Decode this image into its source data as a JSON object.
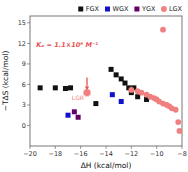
{
  "chart_data": {
    "type": "scatter",
    "x_label": "ΔH (kcal/mol)",
    "y_label": "−TΔS (kcal/mol)",
    "xlim": [
      -20,
      -8
    ],
    "ylim": [
      -3,
      16
    ],
    "xticks": [
      -20,
      -18,
      -16,
      -14,
      -12,
      -10,
      -8
    ],
    "yticks": [
      0,
      3,
      6,
      9,
      12,
      15
    ],
    "grid": false,
    "legend": "upper right",
    "series": [
      {
        "name": "FGX",
        "color": "#111111",
        "marker": "square",
        "x": [
          -19.2,
          -18.0,
          -17.2,
          -16.8,
          -14.8,
          -13.6,
          -13.2,
          -12.8,
          -12.5,
          -12.2,
          -12.0,
          -11.8,
          -11.5,
          -10.8
        ],
        "values": [
          5.5,
          5.5,
          5.4,
          5.5,
          3.2,
          8.2,
          7.4,
          6.8,
          6.2,
          5.5,
          4.8,
          5.5,
          4.2,
          3.8
        ]
      },
      {
        "name": "WGX",
        "color": "#1111cc",
        "marker": "square",
        "x": [
          -17.0,
          -13.5,
          -12.8
        ],
        "values": [
          1.5,
          4.5,
          3.5
        ]
      },
      {
        "name": "YGX",
        "color": "#660066",
        "marker": "square",
        "x": [
          -16.5,
          -16.2
        ],
        "values": [
          2.0,
          1.2
        ]
      },
      {
        "name": "LGX",
        "color": "#F08080",
        "marker": "circle",
        "x": [
          -12.0,
          -11.5,
          -11.2,
          -10.8,
          -10.5,
          -10.2,
          -10.0,
          -9.8,
          -9.5,
          -9.2,
          -9.0,
          -8.8,
          -8.5,
          -8.3,
          -8.2,
          -9.5
        ],
        "values": [
          5.2,
          5.0,
          4.8,
          4.5,
          4.2,
          4.0,
          3.8,
          3.5,
          3.2,
          3.0,
          2.8,
          2.5,
          2.3,
          0.5,
          -0.8,
          14.0
        ]
      }
    ],
    "highlight": {
      "name": "LGR",
      "x": -15.5,
      "y": 4.8,
      "color": "#F08080"
    },
    "annotation": {
      "text": "Kₐ = 1.1×10⁹ M⁻¹",
      "x": -19.5,
      "y": 11.5,
      "color": "#E85050"
    },
    "arrow": {
      "x": -15.5,
      "y_start": 7.0,
      "y_end": 5.2,
      "color": "#E85050"
    }
  }
}
